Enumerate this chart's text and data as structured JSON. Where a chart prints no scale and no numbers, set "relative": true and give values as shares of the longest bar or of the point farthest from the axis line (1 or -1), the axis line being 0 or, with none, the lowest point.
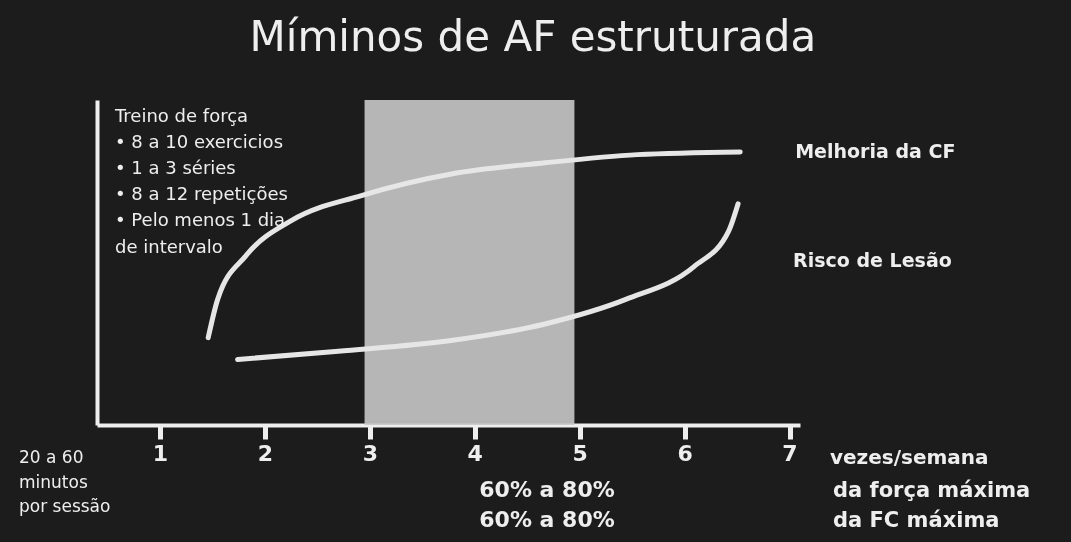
{
  "chart_data": {
    "type": "line",
    "title": "Míminos de AF estruturada",
    "relative": true,
    "xlabel": "vezes/semana",
    "xlim": [
      0.4,
      7.1
    ],
    "xticks": [
      1,
      2,
      3,
      4,
      5,
      6,
      7
    ],
    "grid": false,
    "tick_labels": "x",
    "marker": "none",
    "line_style": "solid",
    "series": [
      {
        "name": "Melhoria da CF",
        "color": "#e6e6e6",
        "x": [
          1.46,
          1.55,
          1.82,
          2.26,
          2.92,
          3.79,
          4.67,
          5.55,
          6.53
        ],
        "values": [
          0.32,
          0.46,
          0.62,
          0.75,
          0.84,
          0.92,
          0.96,
          0.99,
          1.0
        ]
      },
      {
        "name": "Risco de Lesão",
        "color": "#e6e6e6",
        "x": [
          1.74,
          2.7,
          3.79,
          4.67,
          5.44,
          6.09,
          6.42,
          6.51
        ],
        "values": [
          0.24,
          0.27,
          0.31,
          0.37,
          0.46,
          0.58,
          0.71,
          0.81
        ]
      }
    ],
    "bands": [
      {
        "axis": "x",
        "from": 2.95,
        "to": 4.95,
        "color": "#c8c8c8"
      }
    ],
    "annotations": [
      "Treino de força\n• 8 a 10 exercicios\n• 1 a 3 séries\n• 8 a 12 repetições\n• Pelo menos 1 dia\nde intervalo",
      "20 a 60\nminutos\npor sessão",
      "60% a 80%",
      "da força máxima",
      "60%    a    80%",
      "da FC máxima"
    ]
  }
}
